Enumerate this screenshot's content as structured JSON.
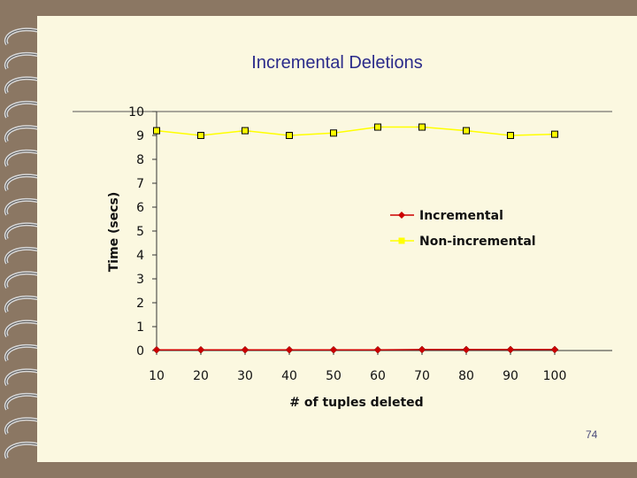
{
  "slide": {
    "title": "Incremental Deletions",
    "page_number": "74"
  },
  "colors": {
    "background": "#fbf8e0",
    "frame": "#8b7763",
    "incremental": "#cc0000",
    "non_incremental": "#ffff00"
  },
  "chart_data": {
    "type": "line",
    "title": "",
    "xlabel": "# of tuples deleted",
    "ylabel": "Time (secs)",
    "x": [
      10,
      20,
      30,
      40,
      50,
      60,
      70,
      80,
      90,
      100
    ],
    "ylim": [
      0,
      10
    ],
    "yticks": [
      0,
      1,
      2,
      3,
      4,
      5,
      6,
      7,
      8,
      9,
      10
    ],
    "grid": false,
    "legend_position": "right",
    "series": [
      {
        "name": "Incremental",
        "values": [
          0.03,
          0.03,
          0.03,
          0.03,
          0.03,
          0.03,
          0.04,
          0.04,
          0.04,
          0.04
        ],
        "color": "#cc0000",
        "marker": "diamond"
      },
      {
        "name": "Non-incremental",
        "values": [
          9.2,
          9.0,
          9.2,
          9.0,
          9.1,
          9.35,
          9.35,
          9.2,
          9.0,
          9.05
        ],
        "color": "#ffff00",
        "marker": "square"
      }
    ]
  }
}
